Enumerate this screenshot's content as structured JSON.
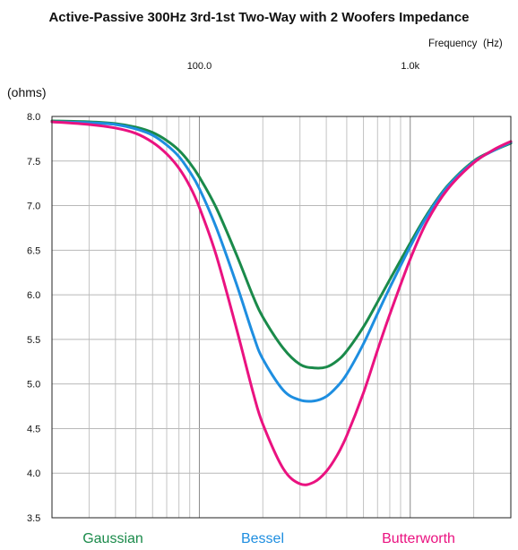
{
  "chart_data": {
    "type": "line",
    "title": "Active-Passive 300Hz 3rd-1st Two-Way with 2 Woofers Impedance",
    "xlabel": "Frequency",
    "xunit": "(Hz)",
    "ylabel": "(ohms)",
    "xscale": "log",
    "xlim": [
      20,
      3000
    ],
    "ylim": [
      3.5,
      8.0
    ],
    "xtick_labels": [
      {
        "value": 100,
        "label": "100.0"
      },
      {
        "value": 1000,
        "label": "1.0k"
      }
    ],
    "yticks": [
      "3.5",
      "4.0",
      "4.5",
      "5.0",
      "5.5",
      "6.0",
      "6.5",
      "7.0",
      "7.5",
      "8.0"
    ],
    "grid": true,
    "legend_position": "bottom",
    "series": [
      {
        "name": "Gaussian",
        "color": "#1a8a4a",
        "x": [
          20,
          30,
          40,
          50,
          60,
          70,
          80,
          90,
          100,
          120,
          150,
          180,
          200,
          250,
          300,
          350,
          400,
          450,
          500,
          600,
          700,
          800,
          1000,
          1200,
          1500,
          2000,
          2500,
          3000
        ],
        "y": [
          7.95,
          7.94,
          7.92,
          7.88,
          7.82,
          7.73,
          7.62,
          7.48,
          7.32,
          6.98,
          6.45,
          5.98,
          5.75,
          5.4,
          5.22,
          5.18,
          5.19,
          5.26,
          5.37,
          5.64,
          5.92,
          6.17,
          6.58,
          6.9,
          7.22,
          7.5,
          7.62,
          7.7
        ]
      },
      {
        "name": "Bessel",
        "color": "#1e8ee0",
        "x": [
          20,
          30,
          40,
          50,
          60,
          70,
          80,
          90,
          100,
          120,
          150,
          180,
          200,
          250,
          300,
          350,
          400,
          450,
          500,
          600,
          700,
          800,
          1000,
          1200,
          1500,
          2000,
          2500,
          3000
        ],
        "y": [
          7.94,
          7.93,
          7.91,
          7.86,
          7.79,
          7.68,
          7.55,
          7.38,
          7.19,
          6.76,
          6.12,
          5.55,
          5.28,
          4.93,
          4.82,
          4.81,
          4.86,
          4.97,
          5.11,
          5.45,
          5.79,
          6.08,
          6.54,
          6.88,
          7.21,
          7.49,
          7.62,
          7.71
        ]
      },
      {
        "name": "Butterworth",
        "color": "#ea1280",
        "x": [
          20,
          30,
          40,
          50,
          60,
          70,
          80,
          90,
          100,
          120,
          150,
          180,
          200,
          250,
          300,
          350,
          400,
          450,
          500,
          600,
          700,
          800,
          1000,
          1200,
          1500,
          2000,
          2500,
          3000
        ],
        "y": [
          7.94,
          7.91,
          7.87,
          7.81,
          7.71,
          7.58,
          7.42,
          7.22,
          6.98,
          6.45,
          5.62,
          4.9,
          4.55,
          4.05,
          3.88,
          3.9,
          4.02,
          4.2,
          4.42,
          4.9,
          5.38,
          5.78,
          6.4,
          6.82,
          7.18,
          7.48,
          7.63,
          7.72
        ]
      }
    ]
  }
}
